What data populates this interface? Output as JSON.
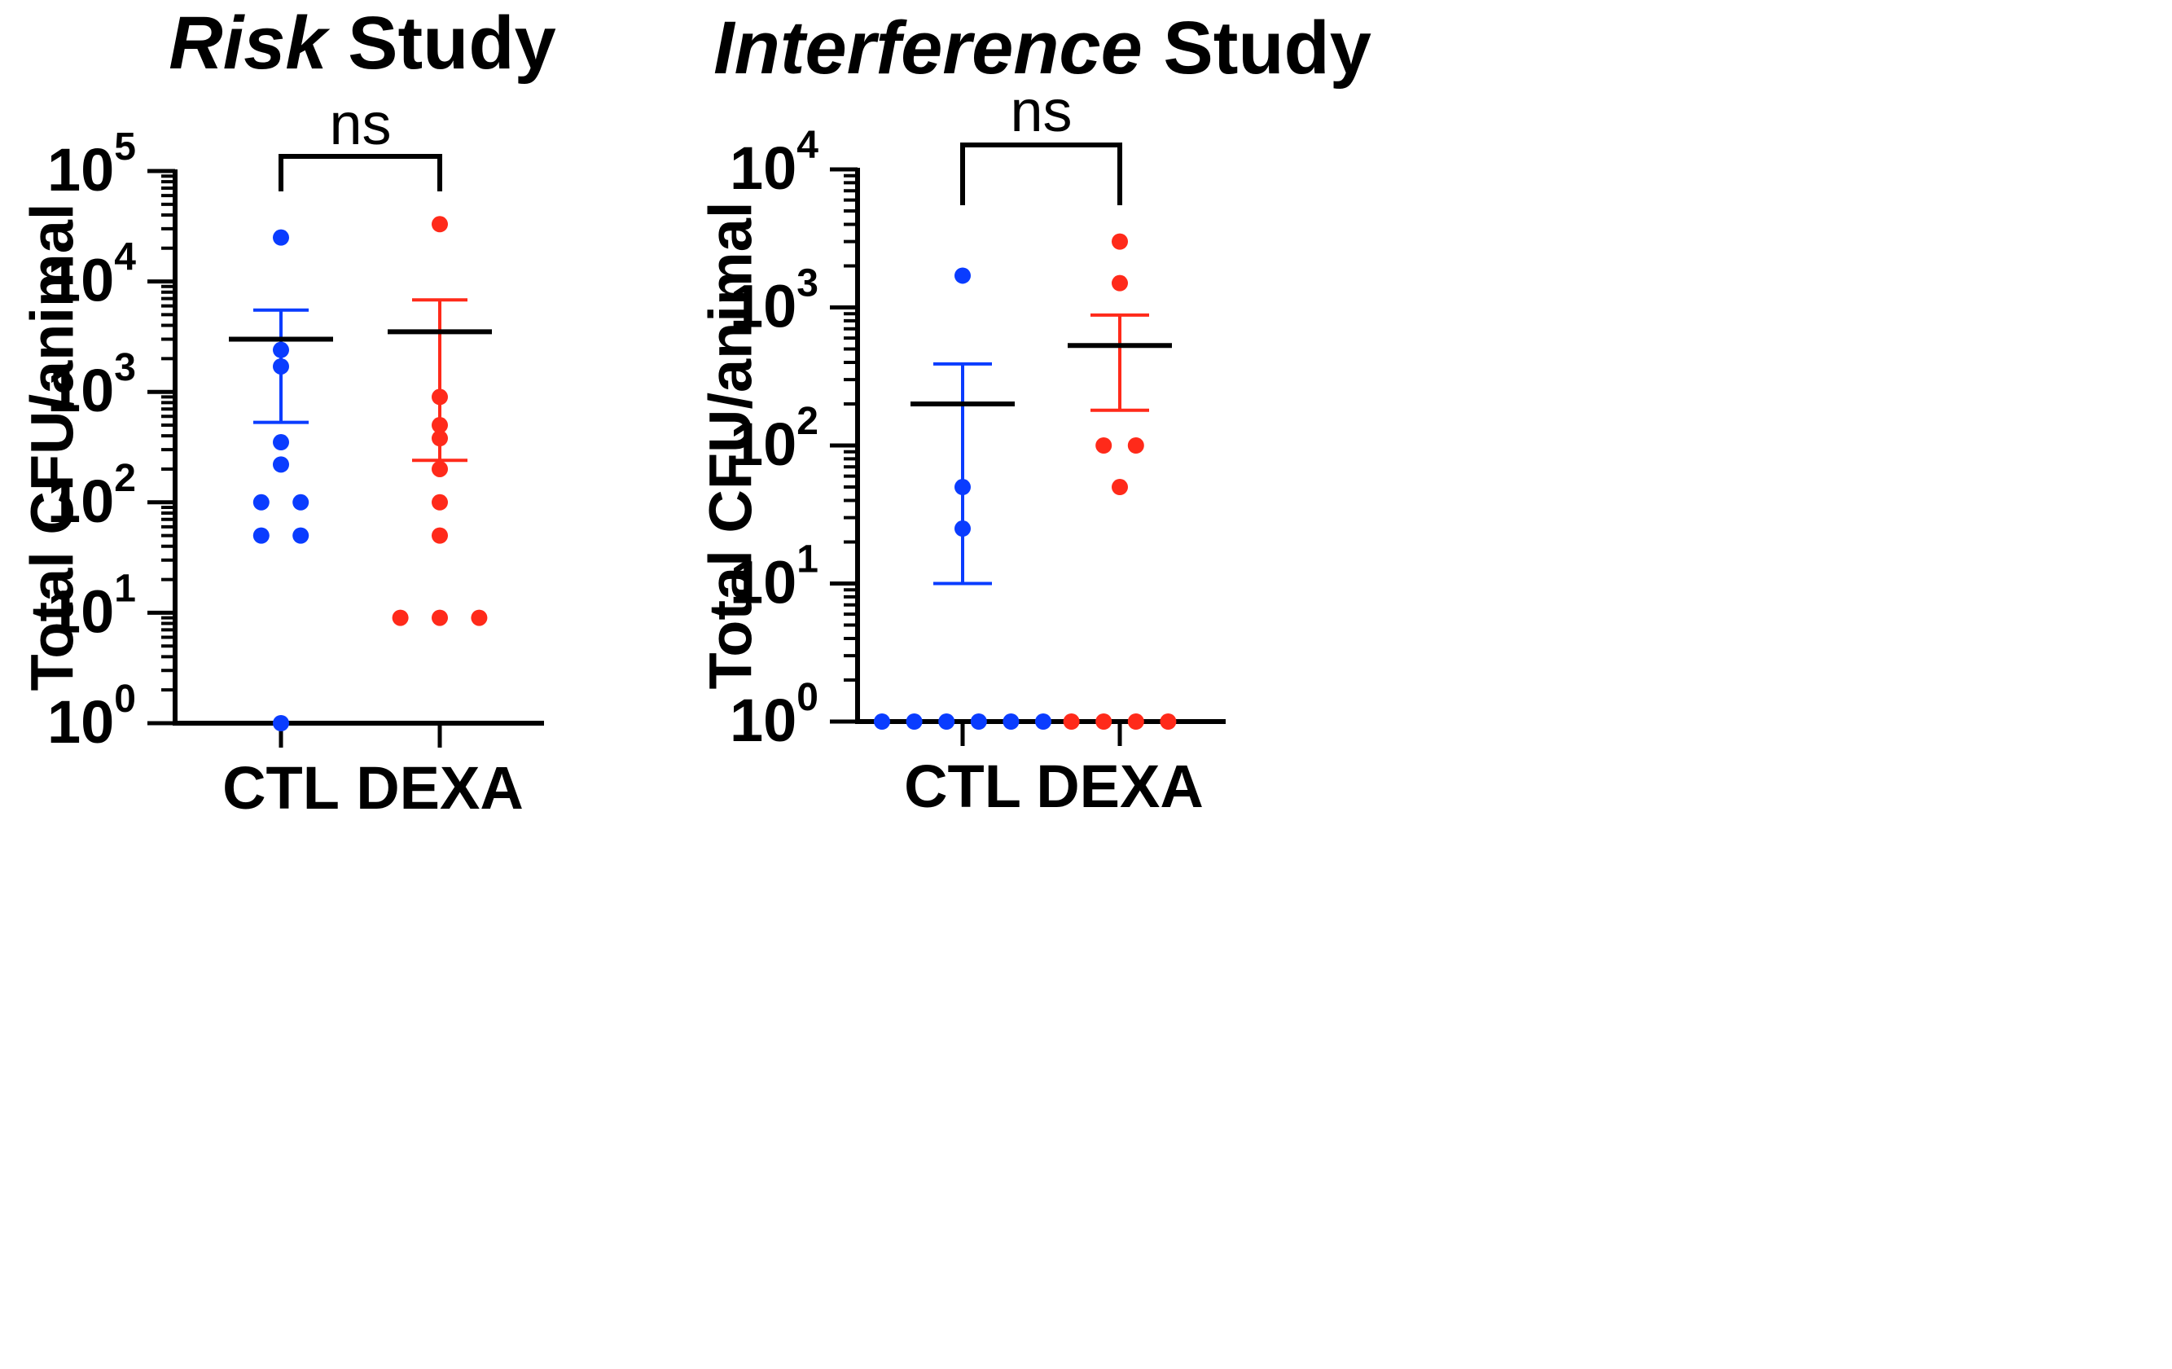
{
  "chart_data": [
    {
      "type": "scatter",
      "subtype": "dot-plot-mean-sem",
      "title_italic": "Risk",
      "title_rest": " Study",
      "ylabel": "Total CFU/animal",
      "yscale": "log10",
      "ylim": [
        1,
        100000
      ],
      "ytick_base": "10",
      "yticks": [
        {
          "value": 1,
          "exp": "0"
        },
        {
          "value": 10,
          "exp": "1"
        },
        {
          "value": 100,
          "exp": "2"
        },
        {
          "value": 1000,
          "exp": "3"
        },
        {
          "value": 10000,
          "exp": "4"
        },
        {
          "value": 100000,
          "exp": "5"
        }
      ],
      "categories": [
        "CTL",
        "DEXA"
      ],
      "significance": {
        "label": "ns",
        "between": [
          "CTL",
          "DEXA"
        ]
      },
      "series": [
        {
          "name": "CTL",
          "color": "#0a3cff",
          "values": [
            25000,
            2400,
            1700,
            350,
            220,
            100,
            100,
            50,
            50,
            1
          ],
          "mean": 3000,
          "sem_upper": 5500,
          "sem_lower": 530
        },
        {
          "name": "DEXA",
          "color": "#ff2a1a",
          "values": [
            33000,
            900,
            500,
            380,
            200,
            100,
            50,
            9,
            9,
            9
          ],
          "mean": 3500,
          "sem_upper": 6800,
          "sem_lower": 240
        }
      ]
    },
    {
      "type": "scatter",
      "subtype": "dot-plot-mean-sem",
      "title_italic": "Interference",
      "title_rest": " Study",
      "ylabel": "Total CFU/animal",
      "yscale": "log10",
      "ylim": [
        1,
        10000
      ],
      "ytick_base": "10",
      "yticks": [
        {
          "value": 1,
          "exp": "0"
        },
        {
          "value": 10,
          "exp": "1"
        },
        {
          "value": 100,
          "exp": "2"
        },
        {
          "value": 1000,
          "exp": "3"
        },
        {
          "value": 10000,
          "exp": "4"
        }
      ],
      "categories": [
        "CTL",
        "DEXA"
      ],
      "significance": {
        "label": "ns",
        "between": [
          "CTL",
          "DEXA"
        ]
      },
      "series": [
        {
          "name": "CTL",
          "color": "#0a3cff",
          "values": [
            1700,
            50,
            25,
            1,
            1,
            1,
            1,
            1,
            1
          ],
          "mean": 200,
          "sem_upper": 390,
          "sem_lower": 10
        },
        {
          "name": "DEXA",
          "color": "#ff2a1a",
          "values": [
            3000,
            1500,
            100,
            100,
            50,
            1,
            1,
            1,
            1
          ],
          "mean": 530,
          "sem_upper": 880,
          "sem_lower": 180
        }
      ]
    }
  ]
}
